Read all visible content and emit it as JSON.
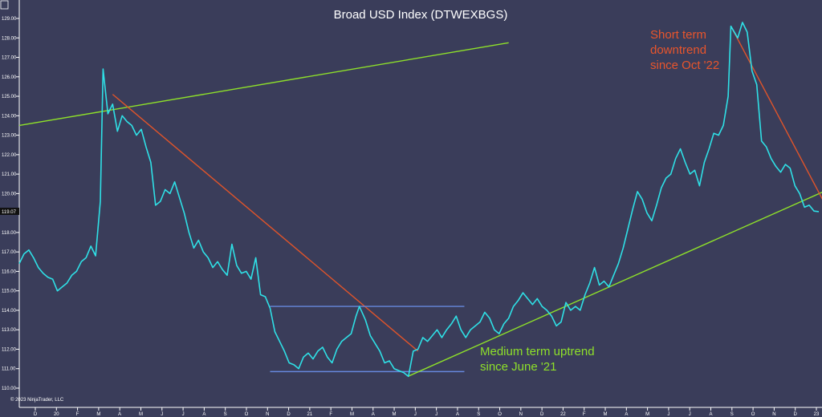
{
  "chart_data": {
    "type": "line",
    "title": "Broad USD Index (DTWEXBGS)",
    "copyright": "© 2023 NinjaTrader, LLC",
    "last_value_label": "119.07",
    "ylim": [
      110.0,
      129.0
    ],
    "yticks": [
      "129.00",
      "128.00",
      "127.00",
      "126.00",
      "125.00",
      "124.00",
      "123.00",
      "122.00",
      "121.00",
      "120.00",
      "119.00",
      "118.00",
      "117.00",
      "116.00",
      "115.00",
      "114.00",
      "113.00",
      "112.00",
      "111.00",
      "110.00"
    ],
    "xlabels": [
      "D",
      "20",
      "F",
      "M",
      "A",
      "M",
      "J",
      "J",
      "A",
      "S",
      "O",
      "N",
      "D",
      "21",
      "F",
      "M",
      "A",
      "M",
      "J",
      "J",
      "A",
      "S",
      "O",
      "N",
      "D",
      "22",
      "F",
      "M",
      "A",
      "M",
      "J",
      "J",
      "A",
      "S",
      "O",
      "N",
      "D",
      "23"
    ],
    "x_range": [
      "2019-11-18",
      "2023-02-03"
    ],
    "series": [
      {
        "color": "#2fe0e6",
        "points": [
          [
            "2019-11-18",
            116.4
          ],
          [
            "2019-11-25",
            116.9
          ],
          [
            "2019-12-02",
            117.1
          ],
          [
            "2019-12-09",
            116.7
          ],
          [
            "2019-12-16",
            116.2
          ],
          [
            "2019-12-23",
            115.9
          ],
          [
            "2019-12-30",
            115.7
          ],
          [
            "2020-01-06",
            115.6
          ],
          [
            "2020-01-13",
            115.0
          ],
          [
            "2020-01-20",
            115.2
          ],
          [
            "2020-01-27",
            115.4
          ],
          [
            "2020-02-03",
            115.8
          ],
          [
            "2020-02-10",
            116.0
          ],
          [
            "2020-02-17",
            116.5
          ],
          [
            "2020-02-24",
            116.7
          ],
          [
            "2020-03-02",
            117.3
          ],
          [
            "2020-03-09",
            116.8
          ],
          [
            "2020-03-16",
            119.6
          ],
          [
            "2020-03-20",
            126.4
          ],
          [
            "2020-03-27",
            124.1
          ],
          [
            "2020-04-03",
            124.6
          ],
          [
            "2020-04-10",
            123.2
          ],
          [
            "2020-04-17",
            124.0
          ],
          [
            "2020-04-24",
            123.7
          ],
          [
            "2020-05-01",
            123.5
          ],
          [
            "2020-05-08",
            123.0
          ],
          [
            "2020-05-15",
            123.3
          ],
          [
            "2020-05-22",
            122.4
          ],
          [
            "2020-05-29",
            121.6
          ],
          [
            "2020-06-05",
            119.4
          ],
          [
            "2020-06-12",
            119.6
          ],
          [
            "2020-06-19",
            120.2
          ],
          [
            "2020-06-26",
            120.0
          ],
          [
            "2020-07-03",
            120.6
          ],
          [
            "2020-07-10",
            119.8
          ],
          [
            "2020-07-17",
            119.0
          ],
          [
            "2020-07-24",
            118.0
          ],
          [
            "2020-07-31",
            117.2
          ],
          [
            "2020-08-07",
            117.6
          ],
          [
            "2020-08-14",
            117.0
          ],
          [
            "2020-08-21",
            116.7
          ],
          [
            "2020-08-28",
            116.2
          ],
          [
            "2020-09-04",
            116.5
          ],
          [
            "2020-09-11",
            116.1
          ],
          [
            "2020-09-18",
            115.8
          ],
          [
            "2020-09-25",
            117.4
          ],
          [
            "2020-10-02",
            116.3
          ],
          [
            "2020-10-09",
            115.9
          ],
          [
            "2020-10-16",
            116.0
          ],
          [
            "2020-10-23",
            115.6
          ],
          [
            "2020-10-30",
            116.7
          ],
          [
            "2020-11-06",
            114.8
          ],
          [
            "2020-11-13",
            114.7
          ],
          [
            "2020-11-20",
            114.1
          ],
          [
            "2020-11-27",
            112.9
          ],
          [
            "2020-12-04",
            112.4
          ],
          [
            "2020-12-11",
            111.9
          ],
          [
            "2020-12-18",
            111.3
          ],
          [
            "2020-12-25",
            111.2
          ],
          [
            "2021-01-01",
            111.0
          ],
          [
            "2021-01-08",
            111.6
          ],
          [
            "2021-01-15",
            111.8
          ],
          [
            "2021-01-22",
            111.5
          ],
          [
            "2021-01-29",
            111.9
          ],
          [
            "2021-02-05",
            112.1
          ],
          [
            "2021-02-12",
            111.6
          ],
          [
            "2021-02-19",
            111.3
          ],
          [
            "2021-02-26",
            112.0
          ],
          [
            "2021-03-05",
            112.4
          ],
          [
            "2021-03-12",
            112.6
          ],
          [
            "2021-03-19",
            112.8
          ],
          [
            "2021-03-26",
            113.7
          ],
          [
            "2021-03-31",
            114.2
          ],
          [
            "2021-04-09",
            113.5
          ],
          [
            "2021-04-16",
            112.7
          ],
          [
            "2021-04-23",
            112.3
          ],
          [
            "2021-04-30",
            111.9
          ],
          [
            "2021-05-07",
            111.3
          ],
          [
            "2021-05-14",
            111.4
          ],
          [
            "2021-05-21",
            111.0
          ],
          [
            "2021-05-28",
            110.9
          ],
          [
            "2021-06-04",
            110.8
          ],
          [
            "2021-06-11",
            110.6
          ],
          [
            "2021-06-18",
            111.9
          ],
          [
            "2021-06-25",
            112.0
          ],
          [
            "2021-07-02",
            112.6
          ],
          [
            "2021-07-09",
            112.4
          ],
          [
            "2021-07-16",
            112.7
          ],
          [
            "2021-07-23",
            113.0
          ],
          [
            "2021-07-30",
            112.6
          ],
          [
            "2021-08-06",
            113.0
          ],
          [
            "2021-08-13",
            113.3
          ],
          [
            "2021-08-20",
            113.7
          ],
          [
            "2021-08-27",
            113.0
          ],
          [
            "2021-09-03",
            112.6
          ],
          [
            "2021-09-10",
            113.0
          ],
          [
            "2021-09-17",
            113.2
          ],
          [
            "2021-09-24",
            113.4
          ],
          [
            "2021-10-01",
            113.9
          ],
          [
            "2021-10-08",
            113.6
          ],
          [
            "2021-10-15",
            113.0
          ],
          [
            "2021-10-22",
            112.8
          ],
          [
            "2021-10-29",
            113.3
          ],
          [
            "2021-11-05",
            113.6
          ],
          [
            "2021-11-12",
            114.2
          ],
          [
            "2021-11-19",
            114.5
          ],
          [
            "2021-11-26",
            114.9
          ],
          [
            "2021-12-03",
            114.6
          ],
          [
            "2021-12-10",
            114.3
          ],
          [
            "2021-12-17",
            114.6
          ],
          [
            "2021-12-24",
            114.2
          ],
          [
            "2021-12-31",
            114.0
          ],
          [
            "2022-01-07",
            113.7
          ],
          [
            "2022-01-14",
            113.2
          ],
          [
            "2022-01-21",
            113.4
          ],
          [
            "2022-01-28",
            114.4
          ],
          [
            "2022-02-04",
            114.0
          ],
          [
            "2022-02-11",
            114.2
          ],
          [
            "2022-02-18",
            114.0
          ],
          [
            "2022-02-25",
            114.8
          ],
          [
            "2022-03-04",
            115.4
          ],
          [
            "2022-03-11",
            116.2
          ],
          [
            "2022-03-18",
            115.3
          ],
          [
            "2022-03-25",
            115.5
          ],
          [
            "2022-04-01",
            115.2
          ],
          [
            "2022-04-08",
            115.8
          ],
          [
            "2022-04-15",
            116.4
          ],
          [
            "2022-04-22",
            117.2
          ],
          [
            "2022-04-29",
            118.2
          ],
          [
            "2022-05-06",
            119.2
          ],
          [
            "2022-05-13",
            120.1
          ],
          [
            "2022-05-20",
            119.7
          ],
          [
            "2022-05-27",
            119.0
          ],
          [
            "2022-06-03",
            118.6
          ],
          [
            "2022-06-10",
            119.4
          ],
          [
            "2022-06-17",
            120.3
          ],
          [
            "2022-06-24",
            120.8
          ],
          [
            "2022-07-01",
            121.0
          ],
          [
            "2022-07-08",
            121.8
          ],
          [
            "2022-07-15",
            122.3
          ],
          [
            "2022-07-22",
            121.6
          ],
          [
            "2022-07-29",
            121.0
          ],
          [
            "2022-08-05",
            121.2
          ],
          [
            "2022-08-12",
            120.4
          ],
          [
            "2022-08-19",
            121.6
          ],
          [
            "2022-08-26",
            122.3
          ],
          [
            "2022-09-02",
            123.1
          ],
          [
            "2022-09-09",
            123.0
          ],
          [
            "2022-09-16",
            123.5
          ],
          [
            "2022-09-23",
            125.0
          ],
          [
            "2022-09-27",
            128.6
          ],
          [
            "2022-10-07",
            128.0
          ],
          [
            "2022-10-14",
            128.8
          ],
          [
            "2022-10-21",
            128.3
          ],
          [
            "2022-10-28",
            126.3
          ],
          [
            "2022-11-04",
            125.6
          ],
          [
            "2022-11-11",
            122.7
          ],
          [
            "2022-11-18",
            122.4
          ],
          [
            "2022-11-25",
            121.8
          ],
          [
            "2022-12-02",
            121.4
          ],
          [
            "2022-12-09",
            121.1
          ],
          [
            "2022-12-16",
            121.5
          ],
          [
            "2022-12-23",
            121.3
          ],
          [
            "2022-12-30",
            120.4
          ],
          [
            "2023-01-06",
            120.0
          ],
          [
            "2023-01-13",
            119.3
          ],
          [
            "2023-01-20",
            119.4
          ],
          [
            "2023-01-27",
            119.1
          ],
          [
            "2023-02-03",
            119.07
          ]
        ]
      }
    ],
    "trendlines": [
      {
        "color": "#8ee02a",
        "from": [
          "2019-11-18",
          123.5
        ],
        "to": [
          "2021-11-05",
          127.75
        ]
      },
      {
        "color": "#e0542a",
        "from": [
          "2020-04-03",
          125.1
        ],
        "to": [
          "2021-06-25",
          111.9
        ]
      },
      {
        "color": "#6688dd",
        "from": [
          "2020-11-20",
          114.2
        ],
        "to": [
          "2021-09-01",
          114.2
        ]
      },
      {
        "color": "#6688dd",
        "from": [
          "2020-11-20",
          110.85
        ],
        "to": [
          "2021-09-01",
          110.85
        ]
      },
      {
        "color": "#8ee02a",
        "from": [
          "2021-06-10",
          110.6
        ],
        "to": [
          "2023-02-10",
          120.1
        ]
      },
      {
        "color": "#e0542a",
        "from": [
          "2022-09-27",
          128.6
        ],
        "to": [
          "2023-02-10",
          119.6
        ]
      }
    ],
    "annotations": [
      {
        "lines": [
          "Short term",
          "downtrend",
          "since Oct '22"
        ],
        "color": "#e8552c"
      },
      {
        "lines": [
          "Medium term uptrend",
          "since June '21"
        ],
        "color": "#8ee02a"
      }
    ]
  }
}
